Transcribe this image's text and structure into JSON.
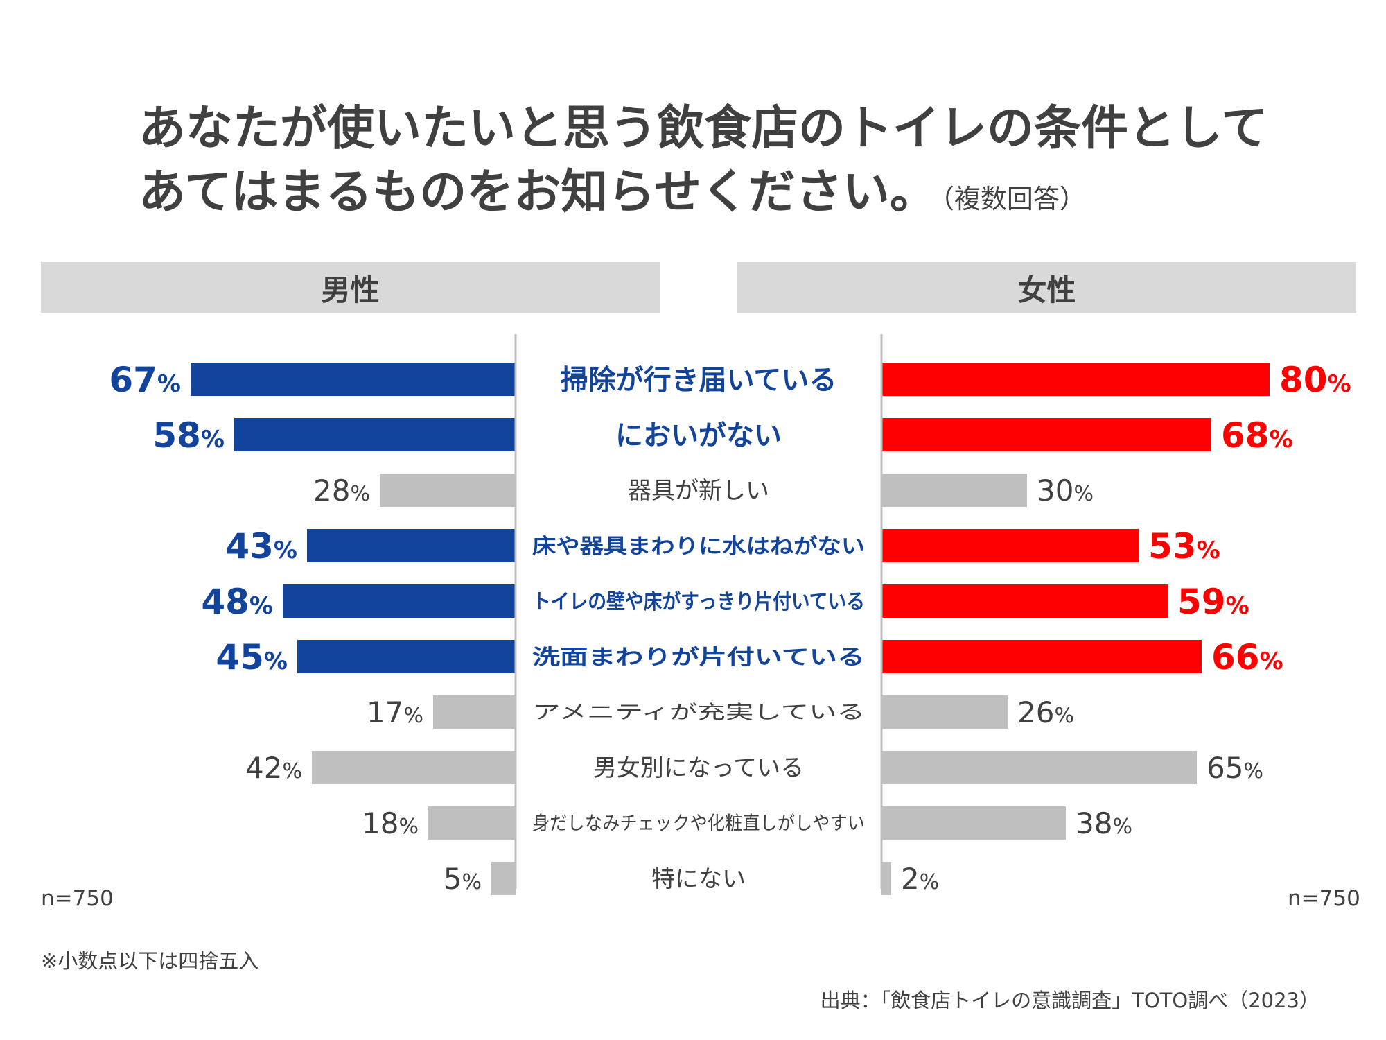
{
  "title": {
    "line1": "あなたが使いたいと思う飲食店のトイレの条件として",
    "line2": "あてはまるものをお知らせください。",
    "note": "（複数回答）"
  },
  "panels": {
    "male": "男性",
    "female": "女性"
  },
  "sample": {
    "male": "n=750",
    "female": "n=750"
  },
  "footnote": "※小数点以下は四捨五入",
  "source": "出典：「飲食店トイレの意識調査」TOTO調べ（2023）",
  "colors": {
    "male_highlight": "#13449b",
    "female_highlight": "#ff0000",
    "normal_bar": "#bfbfbf",
    "normal_text": "#404040",
    "axis": "#bfbfbf"
  },
  "chart_data": {
    "type": "bar",
    "orientation": "horizontal-butterfly",
    "categories": [
      "掃除が行き届いている",
      "においがない",
      "器具が新しい",
      "床や器具まわりに水はねがない",
      "トイレの壁や床がすっきり片付いている",
      "洗面まわりが片付いている",
      "アメニティが充実している",
      "男女別になっている",
      "身だしなみチェックや化粧直しがしやすい",
      "特にない"
    ],
    "highlighted": [
      true,
      true,
      false,
      true,
      true,
      true,
      false,
      false,
      false,
      false
    ],
    "series": [
      {
        "name": "男性",
        "values": [
          67,
          58,
          28,
          43,
          48,
          45,
          17,
          42,
          18,
          5
        ]
      },
      {
        "name": "女性",
        "values": [
          80,
          68,
          30,
          53,
          59,
          66,
          26,
          65,
          38,
          2
        ]
      }
    ],
    "unit": "%",
    "xlim": [
      0,
      100
    ]
  }
}
